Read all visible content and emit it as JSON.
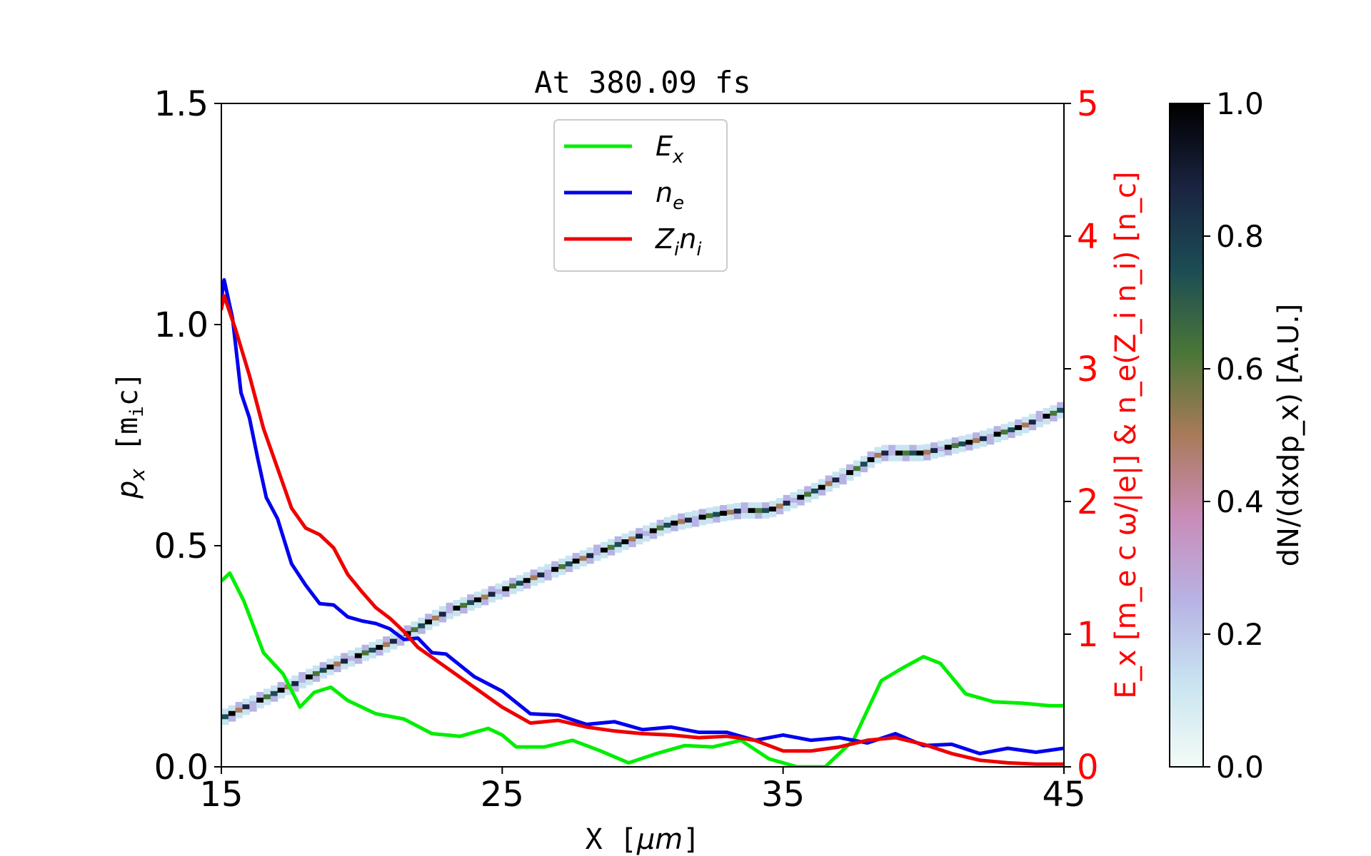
{
  "chart_data": {
    "type": "heatmap",
    "title": "At 380.09 fs",
    "xlabel_prefix": "X  [",
    "xlabel_unit": "μm",
    "xlabel_suffix": "]",
    "ylabel_var": "p",
    "ylabel_sub": "x",
    "ylabel_unit_prefix": "  [m",
    "ylabel_unit_sub": "i",
    "ylabel_unit_suffix": "c]",
    "y2label": "E_x  [m_e c ω/|e|]  &  n_e(Z_i n_i)  [n_c]",
    "colorbar_label": "dN/(dxdp_x)  [A.U.]",
    "xlim": [
      15,
      45
    ],
    "ylim": [
      0,
      1.5
    ],
    "y2lim": [
      0,
      5
    ],
    "clim": [
      0,
      1
    ],
    "x_ticks": [
      15,
      25,
      35,
      45
    ],
    "x_tick_labels": [
      "15",
      "25",
      "35",
      "45"
    ],
    "y_ticks": [
      0,
      0.5,
      1.0,
      1.5
    ],
    "y_tick_labels": [
      "0.0",
      "0.5",
      "1.0",
      "1.5"
    ],
    "y2_ticks": [
      0,
      1,
      2,
      3,
      4,
      5
    ],
    "y2_tick_labels": [
      "0",
      "1",
      "2",
      "3",
      "4",
      "5"
    ],
    "colorbar_ticks": [
      0,
      0.2,
      0.4,
      0.6,
      0.8,
      1.0
    ],
    "colorbar_tick_labels": [
      "0.0",
      "0.2",
      "0.4",
      "0.6",
      "0.8",
      "1.0"
    ],
    "legend_position": "upper-center",
    "phase_space_ridge": {
      "x": [
        15.0,
        17.0,
        19.0,
        21.0,
        23.0,
        25.0,
        27.0,
        29.0,
        31.0,
        32.5,
        33.5,
        34.5,
        36.0,
        37.5,
        38.5,
        40.0,
        42.0,
        43.5,
        45.0
      ],
      "px": [
        0.11,
        0.17,
        0.23,
        0.28,
        0.35,
        0.4,
        0.45,
        0.5,
        0.55,
        0.57,
        0.58,
        0.58,
        0.62,
        0.67,
        0.71,
        0.71,
        0.74,
        0.77,
        0.81
      ]
    },
    "series": [
      {
        "name": "E_x",
        "color": "#00ee00",
        "axis": "right",
        "x": [
          15.0,
          15.3,
          15.8,
          16.5,
          17.2,
          17.8,
          18.3,
          18.9,
          19.5,
          20.5,
          21.5,
          22.5,
          23.5,
          24.5,
          25.0,
          25.5,
          26.5,
          27.5,
          28.5,
          29.5,
          30.5,
          31.5,
          32.5,
          33.5,
          34.5,
          35.5,
          36.5,
          37.5,
          38.5,
          39.3,
          40.0,
          40.6,
          41.5,
          42.5,
          43.5,
          44.5,
          45.0
        ],
        "values": [
          1.4,
          1.46,
          1.25,
          0.86,
          0.7,
          0.45,
          0.56,
          0.6,
          0.5,
          0.4,
          0.36,
          0.25,
          0.23,
          0.29,
          0.24,
          0.15,
          0.15,
          0.2,
          0.12,
          0.03,
          0.1,
          0.16,
          0.15,
          0.2,
          0.06,
          0.0,
          0.0,
          0.2,
          0.65,
          0.75,
          0.83,
          0.78,
          0.55,
          0.49,
          0.48,
          0.46,
          0.46
        ]
      },
      {
        "name": "n_e",
        "color": "#0000ee",
        "axis": "right",
        "x": [
          15.0,
          15.1,
          15.4,
          15.7,
          16.0,
          16.3,
          16.6,
          17.0,
          17.5,
          18.0,
          18.5,
          19.0,
          19.5,
          20.0,
          20.5,
          21.0,
          21.5,
          22.0,
          22.5,
          23.0,
          24.0,
          25.0,
          26.0,
          27.0,
          28.0,
          29.0,
          30.0,
          31.0,
          32.0,
          33.0,
          34.0,
          35.0,
          36.0,
          37.0,
          38.0,
          39.0,
          40.0,
          41.0,
          42.0,
          43.0,
          44.0,
          45.0
        ],
        "values": [
          3.55,
          3.65,
          3.4,
          2.8,
          2.65,
          2.3,
          2.05,
          1.85,
          1.55,
          1.35,
          1.25,
          1.2,
          1.15,
          1.08,
          1.1,
          1.02,
          0.98,
          0.95,
          0.88,
          0.83,
          0.7,
          0.55,
          0.42,
          0.37,
          0.34,
          0.32,
          0.3,
          0.28,
          0.28,
          0.24,
          0.22,
          0.22,
          0.22,
          0.2,
          0.2,
          0.23,
          0.18,
          0.15,
          0.12,
          0.12,
          0.13,
          0.12
        ]
      },
      {
        "name": "Z_i n_i",
        "color": "#ee0000",
        "axis": "right",
        "x": [
          15.0,
          15.1,
          15.5,
          16.0,
          16.5,
          17.0,
          17.5,
          18.0,
          18.5,
          19.0,
          19.5,
          20.0,
          20.5,
          21.0,
          21.5,
          22.0,
          23.0,
          24.0,
          25.0,
          26.0,
          27.0,
          28.0,
          29.0,
          30.0,
          31.0,
          32.0,
          33.0,
          34.0,
          35.0,
          36.0,
          37.0,
          38.0,
          39.0,
          40.0,
          41.0,
          42.0,
          43.0,
          44.0,
          45.0
        ],
        "values": [
          3.45,
          3.55,
          3.3,
          2.95,
          2.55,
          2.25,
          1.95,
          1.8,
          1.75,
          1.65,
          1.45,
          1.32,
          1.2,
          1.12,
          1.02,
          0.9,
          0.75,
          0.6,
          0.45,
          0.33,
          0.35,
          0.3,
          0.27,
          0.25,
          0.24,
          0.22,
          0.23,
          0.2,
          0.12,
          0.12,
          0.15,
          0.2,
          0.22,
          0.17,
          0.1,
          0.05,
          0.03,
          0.02,
          0.02
        ]
      }
    ]
  },
  "legend": {
    "items": [
      {
        "sym": "E",
        "sub": "x",
        "sym2": "",
        "sub2": "",
        "color": "#00ee00"
      },
      {
        "sym": "n",
        "sub": "e",
        "sym2": "",
        "sub2": "",
        "color": "#0000ee"
      },
      {
        "sym": "Z",
        "sub": "i",
        "sym2": "n",
        "sub2": "i",
        "color": "#ee0000"
      }
    ]
  },
  "colors": {
    "right_axis": "#ff0000",
    "colormap": [
      "#f3fbf6",
      "#c9e4f1",
      "#b7b3e4",
      "#c98cb9",
      "#a97a5a",
      "#4a7638",
      "#1c4c54",
      "#1a2340",
      "#000000"
    ]
  }
}
